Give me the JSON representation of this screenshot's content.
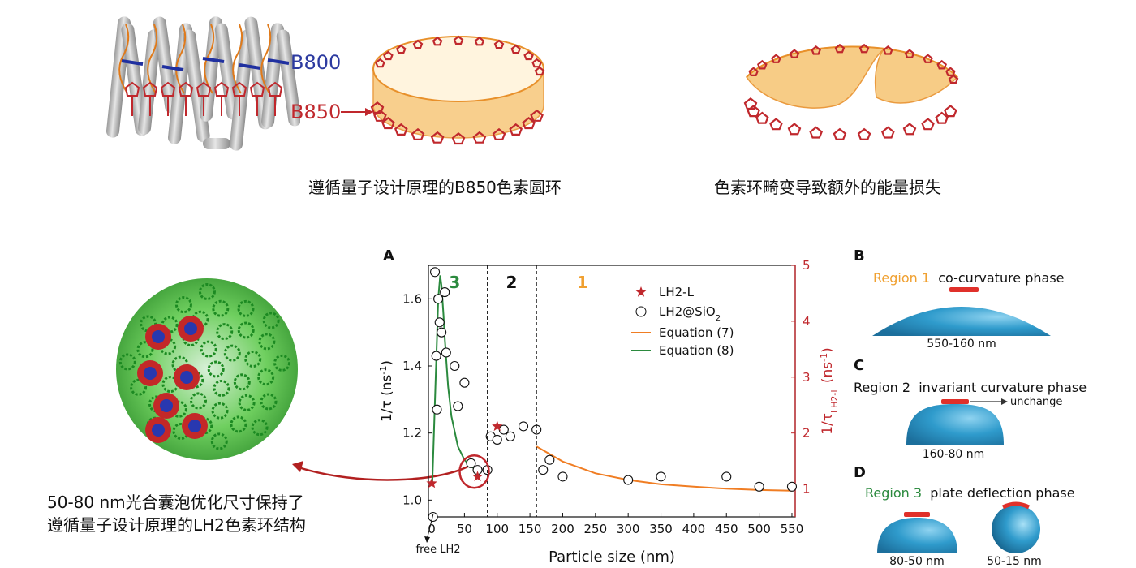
{
  "top": {
    "b800_label": "B800",
    "b850_label": "B850",
    "caption_left": "遵循量子设计原理的B850色素圆环",
    "caption_right": "色素环畸变导致额外的能量损失"
  },
  "bottom_left": {
    "line1": "50-80 nm光合囊泡优化尺寸保持了",
    "line2": "遵循量子设计原理的LH2色素环结构"
  },
  "chart": {
    "panel_label": "A",
    "region_labels": [
      "3",
      "2",
      "1"
    ],
    "region_colors": [
      "#2b8a3e",
      "#111111",
      "#f0a030"
    ],
    "free_lh2_label": "free LH2",
    "xlabel": "Particle size (nm)",
    "ylabel_left": "1/τ (ns",
    "ylabel_left_sup": "-1",
    "ylabel_left_tail": ")",
    "ylabel_right": "1/τ",
    "ylabel_right_sub": "LH2-L",
    "ylabel_right_mid": " (ns",
    "ylabel_right_sup": "-1",
    "ylabel_right_tail": ")",
    "legend": {
      "lh2l": "LH2-L",
      "lh2sio2": "LH2@SiO",
      "lh2sio2_sub": "2",
      "eq7": "Equation (7)",
      "eq8": "Equation (8)"
    },
    "colors": {
      "star": "#c0282d",
      "eq7": "#f07d23",
      "eq8": "#2b8a3e",
      "highlight": "#c0282d"
    }
  },
  "chart_data": {
    "type": "scatter",
    "xlabel": "Particle size (nm)",
    "ylabel": "1/τ (ns-1)",
    "ylabel_right": "1/τLH2-L (ns-1)",
    "xlim": [
      -5,
      555
    ],
    "ylim": [
      0.95,
      1.7
    ],
    "ylim_right": [
      0.5,
      5
    ],
    "x_ticks": [
      0,
      50,
      100,
      150,
      200,
      250,
      300,
      350,
      400,
      450,
      500,
      550
    ],
    "y_ticks": [
      1.0,
      1.2,
      1.4,
      1.6
    ],
    "y_right_ticks": [
      1,
      2,
      3,
      4,
      5
    ],
    "region_boundaries": [
      85,
      160
    ],
    "series": [
      {
        "name": "LH2@SiO2",
        "marker": "open-circle",
        "x": [
          2,
          5,
          7,
          8,
          10,
          12,
          15,
          20,
          22,
          35,
          40,
          50,
          60,
          70,
          85,
          90,
          100,
          110,
          120,
          140,
          160,
          170,
          180,
          200,
          300,
          350,
          450,
          500,
          550
        ],
        "y": [
          0.95,
          1.68,
          1.43,
          1.27,
          1.6,
          1.53,
          1.5,
          1.62,
          1.44,
          1.4,
          1.28,
          1.35,
          1.11,
          1.09,
          1.09,
          1.19,
          1.18,
          1.21,
          1.19,
          1.22,
          1.21,
          1.09,
          1.12,
          1.07,
          1.06,
          1.07,
          1.07,
          1.04,
          1.04
        ]
      },
      {
        "name": "LH2-L",
        "marker": "star",
        "x": [
          0,
          70,
          100
        ],
        "y": [
          1.05,
          1.07,
          1.22
        ]
      },
      {
        "name": "Equation (7)",
        "type": "line",
        "x": [
          160,
          200,
          250,
          300,
          350,
          400,
          450,
          500,
          550
        ],
        "y": [
          1.16,
          1.115,
          1.08,
          1.06,
          1.047,
          1.04,
          1.034,
          1.03,
          1.028
        ]
      },
      {
        "name": "Equation (8)",
        "type": "line",
        "x": [
          1,
          5,
          10,
          13,
          15,
          18,
          20,
          25,
          30,
          40,
          50,
          60,
          70
        ],
        "y": [
          1.05,
          1.3,
          1.6,
          1.67,
          1.64,
          1.55,
          1.48,
          1.34,
          1.25,
          1.16,
          1.12,
          1.1,
          1.09
        ]
      }
    ]
  },
  "panels": {
    "B": {
      "label": "B",
      "region": "Region 1",
      "phase": "co-curvature phase",
      "size": "550-160 nm"
    },
    "C": {
      "label": "C",
      "region": "Region 2",
      "phase": "invariant curvature phase",
      "note": "unchange",
      "size": "160-80 nm"
    },
    "D": {
      "label": "D",
      "region": "Region 3",
      "phase": "plate deflection phase",
      "size1": "80-50 nm",
      "size2": "50-15 nm"
    }
  }
}
